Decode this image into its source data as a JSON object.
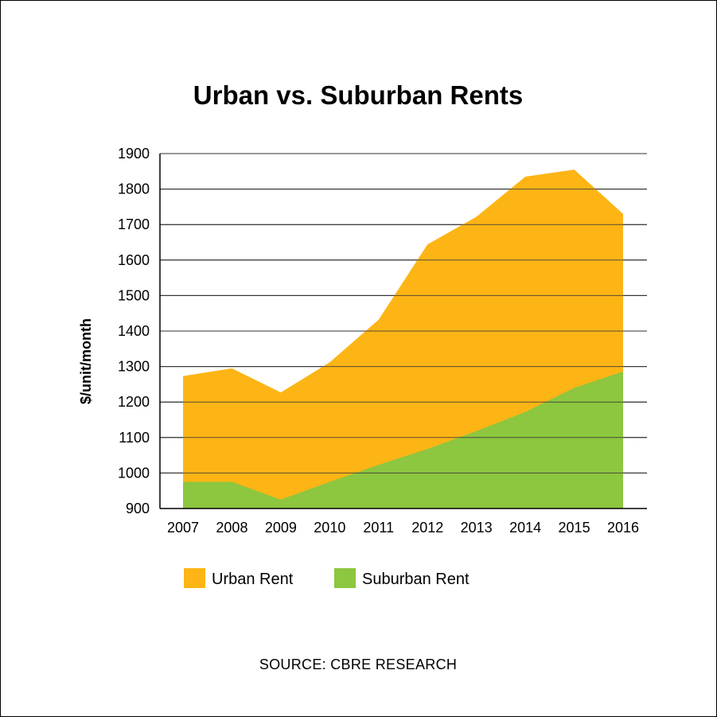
{
  "chart_data": {
    "type": "area",
    "title": "Urban vs. Suburban Rents",
    "xlabel": "",
    "ylabel": "$/unit/month",
    "categories": [
      "2007",
      "2008",
      "2009",
      "2010",
      "2011",
      "2012",
      "2013",
      "2014",
      "2015",
      "2016"
    ],
    "ylim": [
      900,
      1900
    ],
    "yticks": [
      "900",
      "1000",
      "1100",
      "1200",
      "1300",
      "1400",
      "1500",
      "1600",
      "1700",
      "1800",
      "1900"
    ],
    "grid": true,
    "legend_position": "bottom",
    "series": [
      {
        "name": "Urban Rent",
        "color": "#FDB515",
        "values": [
          1273,
          1295,
          1227,
          1312,
          1432,
          1644,
          1722,
          1835,
          1855,
          1730
        ]
      },
      {
        "name": "Suburban Rent",
        "color": "#8DC63F",
        "values": [
          975,
          975,
          925,
          975,
          1023,
          1068,
          1118,
          1172,
          1240,
          1286
        ]
      }
    ],
    "source": "SOURCE: CBRE RESEARCH"
  }
}
